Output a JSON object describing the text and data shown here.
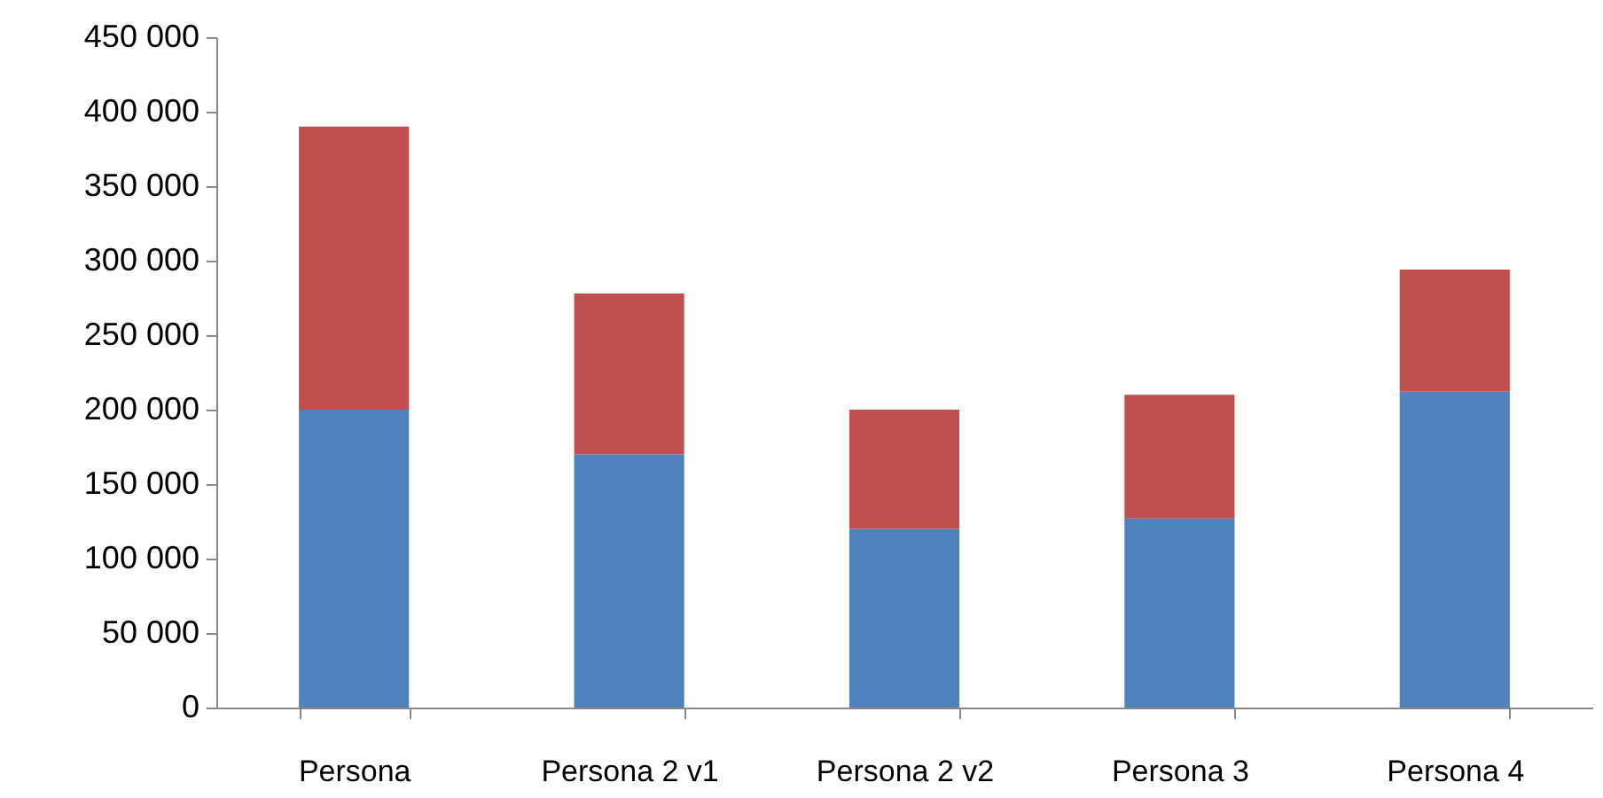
{
  "chart_data": {
    "type": "bar",
    "stacked": true,
    "categories": [
      "Persona",
      "Persona 2 v1",
      "Persona 2 v2",
      "Persona 3",
      "Persona 4"
    ],
    "series": [
      {
        "color": "#4f81bd",
        "values": [
          200000,
          170000,
          120000,
          127000,
          212000
        ]
      },
      {
        "color": "#c0504d",
        "values": [
          190000,
          108000,
          80000,
          83000,
          82000
        ]
      }
    ],
    "ylim": [
      0,
      450000
    ],
    "yticks": [
      {
        "value": 0,
        "label": "0"
      },
      {
        "value": 50000,
        "label": "50 000"
      },
      {
        "value": 100000,
        "label": "100 000"
      },
      {
        "value": 150000,
        "label": "150 000"
      },
      {
        "value": 200000,
        "label": "200 000"
      },
      {
        "value": 250000,
        "label": "250 000"
      },
      {
        "value": 300000,
        "label": "300 000"
      },
      {
        "value": 350000,
        "label": "350 000"
      },
      {
        "value": 400000,
        "label": "400 000"
      },
      {
        "value": 450000,
        "label": "450 000"
      }
    ],
    "grid": false,
    "legend": false
  }
}
